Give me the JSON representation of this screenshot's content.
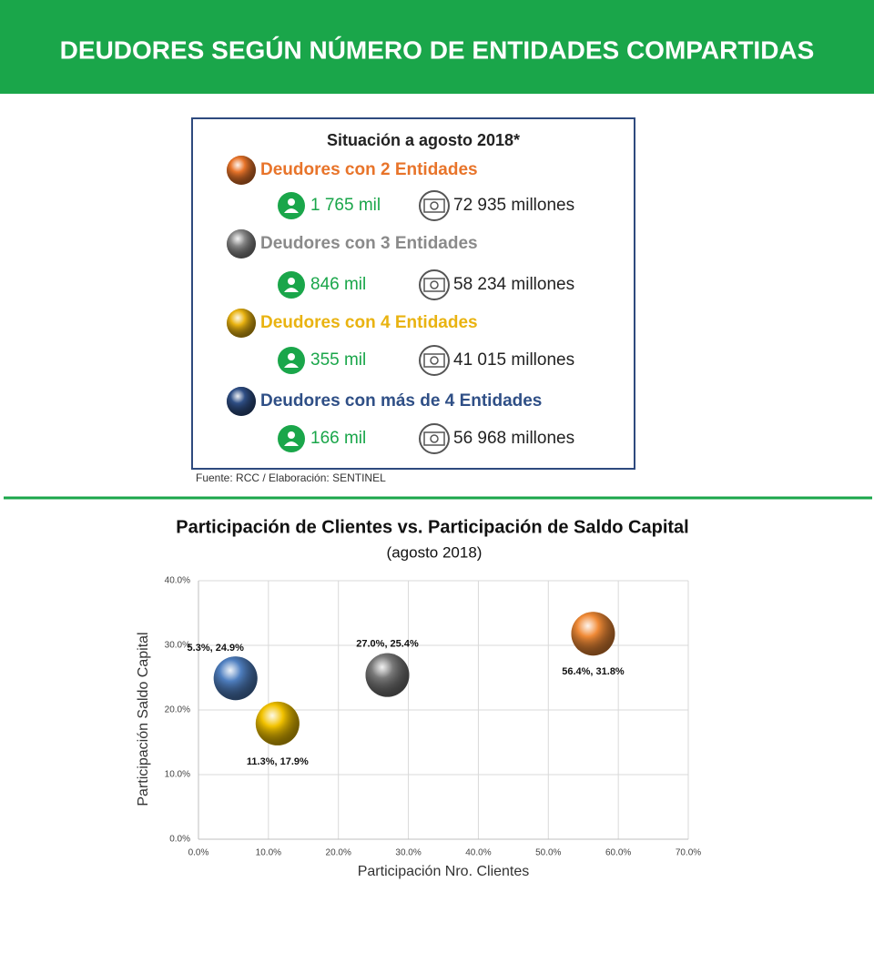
{
  "header": {
    "title": "DEUDORES SEGÚN NÚMERO DE ENTIDADES COMPARTIDAS"
  },
  "summary": {
    "title": "Situación a agosto 2018*",
    "groups": [
      {
        "label": "Deudores con 2 Entidades",
        "clients": "1 765 mil",
        "amount": "72 935 millones",
        "color": "#e8742a"
      },
      {
        "label": "Deudores con 3 Entidades",
        "clients": "846 mil",
        "amount": "58 234 millones",
        "color": "#8a8a8a"
      },
      {
        "label": "Deudores con 4 Entidades",
        "clients": "355 mil",
        "amount": "41 015 millones",
        "color": "#e9b311"
      },
      {
        "label": "Deudores con más de 4 Entidades",
        "clients": "166 mil",
        "amount": "56 968 millones",
        "color": "#2f4f86"
      }
    ],
    "source": "Fuente: RCC / Elaboración: SENTINEL"
  },
  "chart_data": {
    "type": "scatter",
    "title": "Participación de Clientes vs. Participación de Saldo Capital",
    "subtitle": "(agosto 2018)",
    "x_label": "Participación Nro. Clientes",
    "y_label": "Participación Saldo Capital",
    "x": [
      56.4,
      27.0,
      11.3,
      5.3
    ],
    "values": [
      31.8,
      25.4,
      17.9,
      24.9
    ],
    "value_labels": [
      "56.4%, 31.8%",
      "27.0%, 25.4%",
      "11.3%, 17.9%",
      "5.3%, 24.9%"
    ],
    "colors": [
      "#f08a36",
      "#7a7a7a",
      "#f2c200",
      "#4f7fc0"
    ],
    "xlim": [
      0,
      70
    ],
    "ylim": [
      0,
      40
    ],
    "xticks": [
      {
        "value": 0,
        "label": "0.0%"
      },
      {
        "value": 10,
        "label": "10.0%"
      },
      {
        "value": 20,
        "label": "20.0%"
      },
      {
        "value": 30,
        "label": "30.0%"
      },
      {
        "value": 40,
        "label": "40.0%"
      },
      {
        "value": 50,
        "label": "50.0%"
      },
      {
        "value": 60,
        "label": "60.0%"
      },
      {
        "value": 70,
        "label": "70.0%"
      }
    ],
    "yticks": [
      {
        "value": 0,
        "label": "0.0%"
      },
      {
        "value": 10,
        "label": "10.0%"
      },
      {
        "value": 20,
        "label": "20.0%"
      },
      {
        "value": 30,
        "label": "30.0%"
      },
      {
        "value": 40,
        "label": "40.0%"
      }
    ],
    "grid": true
  }
}
